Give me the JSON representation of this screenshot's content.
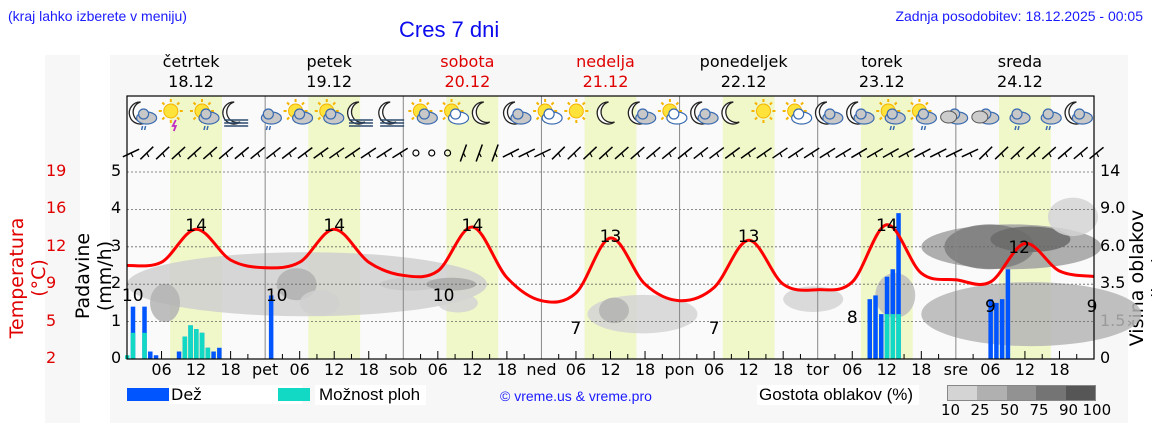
{
  "header": {
    "location_hint": "(kraj lahko izberete v meniju)",
    "title": "Cres 7 dni",
    "last_update": "Zadnja posodobitev: 18.12.2025 - 00:05"
  },
  "days": [
    {
      "name": "četrtek",
      "date": "18.12",
      "weekend": false
    },
    {
      "name": "petek",
      "date": "19.12",
      "weekend": false
    },
    {
      "name": "sobota",
      "date": "20.12",
      "weekend": true
    },
    {
      "name": "nedelja",
      "date": "21.12",
      "weekend": true
    },
    {
      "name": "ponedeljek",
      "date": "22.12",
      "weekend": false
    },
    {
      "name": "torek",
      "date": "23.12",
      "weekend": false
    },
    {
      "name": "sreda",
      "date": "24.12",
      "weekend": false
    }
  ],
  "axes": {
    "left_temp_label": "Temperatura (°C)",
    "left_temp_ticks": [
      "19",
      "16",
      "12",
      "9",
      "5",
      "2"
    ],
    "left_precip_label": "Padavine (mm/h)",
    "left_precip_ticks": [
      "5",
      "4",
      "3",
      "2",
      "1",
      "0"
    ],
    "right_label": "Višina oblakov (km)",
    "right_ticks": [
      "14",
      "9.0",
      "6.0",
      "3.5",
      "1.5",
      "0"
    ],
    "x_ticks": [
      "06",
      "12",
      "18",
      "pet",
      "06",
      "12",
      "18",
      "sob",
      "06",
      "12",
      "18",
      "ned",
      "06",
      "12",
      "18",
      "pon",
      "06",
      "12",
      "18",
      "tor",
      "06",
      "12",
      "18",
      "sre",
      "06",
      "12",
      "18"
    ]
  },
  "legend": {
    "rain_label": "Dež",
    "rain_color": "#0055ff",
    "shower_label": "Možnost ploh",
    "shower_color": "#12d9c4",
    "copyright": "© vreme.us & vreme.pro",
    "cloud_density_label": "Gostota oblakov (%)",
    "cloud_density_ticks": [
      "10",
      "25",
      "50",
      "75",
      "90",
      "100"
    ],
    "cloud_density_colors": [
      "#d4d4d4",
      "#b0b0b0",
      "#929292",
      "#747474",
      "#565656"
    ]
  },
  "chart_data": {
    "type": "line",
    "title": "Cres 7 dni",
    "xlabel": "",
    "ylabel": "Temperatura (°C) / Padavine (mm/h)",
    "y2label": "Višina oblakov (km)",
    "temp_ylim": [
      2,
      19
    ],
    "precip_ylim": [
      0,
      5
    ],
    "grid": true,
    "x_hours": [
      0,
      6,
      12,
      18,
      24,
      30,
      36,
      42,
      48,
      54,
      60,
      66,
      72,
      78,
      84,
      90,
      96,
      102,
      108,
      114,
      120,
      126,
      132,
      138,
      144,
      150,
      156,
      162,
      168
    ],
    "series": [
      {
        "name": "Temperatura (°C)",
        "color": "#ff0000",
        "values": [
          10.5,
          10.8,
          13.8,
          11.0,
          10.3,
          10.8,
          13.8,
          10.8,
          9.6,
          10.0,
          14.0,
          9.4,
          7.3,
          8.0,
          13.0,
          8.8,
          7.3,
          8.5,
          12.8,
          8.8,
          8.3,
          9.0,
          14.2,
          9.8,
          9.2,
          9.0,
          12.5,
          10.0,
          9.5
        ]
      },
      {
        "name": "Dež (mm/h)",
        "color": "#0055ff",
        "points": [
          [
            1,
            1.4
          ],
          [
            3,
            1.4
          ],
          [
            4,
            0.2
          ],
          [
            5,
            0.1
          ],
          [
            9,
            0.2
          ],
          [
            10,
            0.6
          ],
          [
            11,
            0.9
          ],
          [
            12,
            0.8
          ],
          [
            13,
            0.7
          ],
          [
            14,
            0.3
          ],
          [
            15,
            0.2
          ],
          [
            16,
            0.3
          ],
          [
            25,
            1.7
          ],
          [
            129,
            1.6
          ],
          [
            130,
            1.7
          ],
          [
            131,
            1.2
          ],
          [
            132,
            2.2
          ],
          [
            133,
            2.4
          ],
          [
            134,
            3.9
          ],
          [
            150,
            1.6
          ],
          [
            151,
            1.5
          ],
          [
            152,
            1.6
          ],
          [
            153,
            2.4
          ]
        ]
      },
      {
        "name": "Možnost ploh (mm/h)",
        "color": "#12d9c4",
        "points": [
          [
            0,
            0.1
          ],
          [
            1,
            0.7
          ],
          [
            3,
            0.7
          ],
          [
            10,
            0.6
          ],
          [
            11,
            0.9
          ],
          [
            12,
            0.8
          ],
          [
            13,
            0.7
          ],
          [
            14,
            0.3
          ],
          [
            132,
            1.2
          ],
          [
            133,
            1.2
          ],
          [
            134,
            1.2
          ]
        ]
      }
    ],
    "temp_annotations": [
      {
        "hour": 1,
        "value": "10"
      },
      {
        "hour": 12,
        "value": "14"
      },
      {
        "hour": 26,
        "value": "10"
      },
      {
        "hour": 36,
        "value": "14"
      },
      {
        "hour": 55,
        "value": "10"
      },
      {
        "hour": 60,
        "value": "14"
      },
      {
        "hour": 78,
        "value": "7"
      },
      {
        "hour": 84,
        "value": "13"
      },
      {
        "hour": 102,
        "value": "7"
      },
      {
        "hour": 108,
        "value": "13"
      },
      {
        "hour": 126,
        "value": "8"
      },
      {
        "hour": 132,
        "value": "14"
      },
      {
        "hour": 150,
        "value": "9"
      },
      {
        "hour": 155,
        "value": "12"
      },
      {
        "hour": 168,
        "value": "9"
      }
    ],
    "daylight_hours": [
      7.5,
      16.5
    ]
  },
  "icons_row": [
    "moon-cloud-rain",
    "sun-storm",
    "sun-cloud-rain",
    "moon-fog",
    "cloud-rain",
    "sun-cloud",
    "sun-cloud",
    "moon-fog",
    "moon-fog",
    "sun-cloud",
    "sun-small-cloud",
    "moon",
    "moon-cloud",
    "sun-small-cloud",
    "sun",
    "moon",
    "moon-cloud",
    "sun-small-cloud",
    "moon-cloud",
    "moon",
    "sun",
    "sun-small-cloud",
    "moon-cloud",
    "moon-cloud",
    "sun-cloud-rain",
    "cloud-sun-heavy-rain",
    "clouds",
    "clouds",
    "cloud-rain",
    "cloud-rain",
    "moon-cloud"
  ]
}
